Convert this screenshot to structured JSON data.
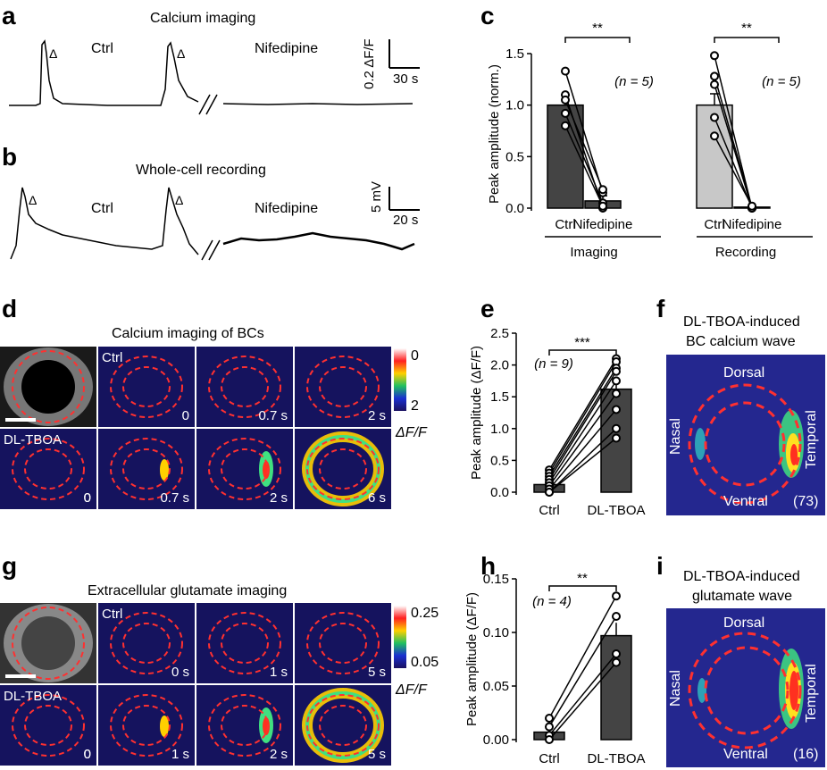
{
  "panels": {
    "a": {
      "label": "a",
      "title": "Calcium imaging",
      "ctrl": "Ctrl",
      "drug": "Nifedipine",
      "scale_y": "0.2 ΔF/F",
      "scale_x": "30 s"
    },
    "b": {
      "label": "b",
      "title": "Whole-cell recording",
      "ctrl": "Ctrl",
      "drug": "Nifedipine",
      "scale_y": "5 mV",
      "scale_x": "20 s"
    },
    "c": {
      "label": "c"
    },
    "d": {
      "label": "d",
      "title": "Calcium imaging of BCs",
      "row1": "Ctrl",
      "row2": "DL-TBOA",
      "times_row1": [
        "0",
        "0.7 s",
        "2 s"
      ],
      "times_row2": [
        "0",
        "0.7 s",
        "2 s",
        "6 s"
      ],
      "cbar_top": "0",
      "cbar_bottom": "2",
      "cbar_unit": "ΔF/F"
    },
    "e": {
      "label": "e"
    },
    "f": {
      "label": "f",
      "title1": "DL-TBOA-induced",
      "title2": "BC calcium wave",
      "dorsal": "Dorsal",
      "ventral": "Ventral",
      "nasal": "Nasal",
      "temporal": "Temporal",
      "n": "(73)"
    },
    "g": {
      "label": "g",
      "title": "Extracellular glutamate imaging",
      "row1": "Ctrl",
      "row2": "DL-TBOA",
      "times_row1": [
        "0 s",
        "1 s",
        "5 s"
      ],
      "times_row2": [
        "0",
        "1 s",
        "2 s",
        "5 s"
      ],
      "cbar_top": "0.25",
      "cbar_bottom": "0.05",
      "cbar_unit": "ΔF/F"
    },
    "h": {
      "label": "h"
    },
    "i": {
      "label": "i",
      "title1": "DL-TBOA-induced",
      "title2": "glutamate wave",
      "dorsal": "Dorsal",
      "ventral": "Ventral",
      "nasal": "Nasal",
      "temporal": "Temporal",
      "n": "(16)"
    }
  },
  "chart_data": [
    {
      "id": "c",
      "type": "bar",
      "ylabel": "Peak amplitude (norm.)",
      "ylim": [
        0,
        1.5
      ],
      "yticks": [
        "0.0",
        "0.5",
        "1.0",
        "1.5"
      ],
      "categories": [
        "Ctrl",
        "Nifedipine",
        "Ctrl",
        "Nifedipine"
      ],
      "groups": [
        "Imaging",
        "Recording"
      ],
      "values": [
        1.0,
        0.07,
        1.0,
        0.01
      ],
      "errors": [
        0.1,
        0.05,
        0.11,
        0.01
      ],
      "n_labels": [
        "(n = 5)",
        "(n = 5)"
      ],
      "sig": [
        "**",
        "**"
      ],
      "bar_colors": [
        "#444444",
        "#444444",
        "#c8c8c8",
        "#c8c8c8"
      ],
      "pairs_imaging": [
        [
          1.33,
          0.15
        ],
        [
          1.1,
          0.0
        ],
        [
          1.05,
          0.18
        ],
        [
          0.92,
          0.05
        ],
        [
          0.8,
          0.02
        ]
      ],
      "pairs_recording": [
        [
          1.48,
          0.0
        ],
        [
          1.28,
          0.01
        ],
        [
          1.2,
          0.0
        ],
        [
          0.88,
          0.0
        ],
        [
          0.7,
          0.02
        ]
      ]
    },
    {
      "id": "e",
      "type": "bar",
      "ylabel": "Peak amplitude (ΔF/F)",
      "ylim": [
        0,
        2.5
      ],
      "yticks": [
        "0.0",
        "0.5",
        "1.0",
        "1.5",
        "2.0",
        "2.5"
      ],
      "categories": [
        "Ctrl",
        "DL-TBOA"
      ],
      "values": [
        0.12,
        1.62
      ],
      "errors": [
        0.05,
        0.15
      ],
      "n_label": "(n = 9)",
      "sig": "***",
      "pairs": [
        [
          0.35,
          2.1
        ],
        [
          0.3,
          2.05
        ],
        [
          0.25,
          1.95
        ],
        [
          0.2,
          1.9
        ],
        [
          0.15,
          1.75
        ],
        [
          0.1,
          1.55
        ],
        [
          0.05,
          1.3
        ],
        [
          0.0,
          1.0
        ],
        [
          0.0,
          0.85
        ]
      ]
    },
    {
      "id": "h",
      "type": "bar",
      "ylabel": "Peak amplitude (ΔF/F)",
      "ylim": [
        0,
        0.15
      ],
      "yticks": [
        "0.00",
        "0.05",
        "0.10",
        "0.15"
      ],
      "categories": [
        "Ctrl",
        "DL-TBOA"
      ],
      "values": [
        0.007,
        0.097
      ],
      "errors": [
        0.005,
        0.012
      ],
      "n_label": "(n = 4)",
      "sig": "**",
      "pairs": [
        [
          0.02,
          0.134
        ],
        [
          0.012,
          0.115
        ],
        [
          0.004,
          0.08
        ],
        [
          0.0,
          0.072
        ]
      ]
    }
  ]
}
